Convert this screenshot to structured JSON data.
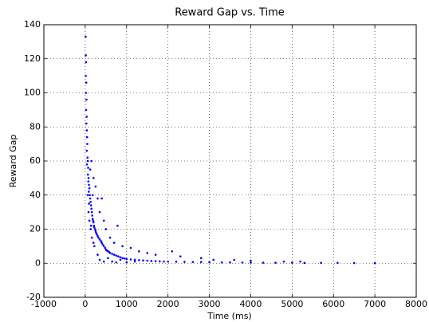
{
  "chart_data": {
    "type": "scatter",
    "title": "Reward Gap vs. Time",
    "x_label": "Time (ms)",
    "y_label": "Reward Gap",
    "color": "#0000ff",
    "grid": true,
    "xlim": [
      -1000,
      8000
    ],
    "xticks": [
      -1000,
      0,
      1000,
      2000,
      3000,
      4000,
      5000,
      6000,
      7000,
      8000
    ],
    "ylim": [
      -20,
      140
    ],
    "yticks": [
      -20,
      0,
      20,
      40,
      60,
      80,
      100,
      120,
      140
    ],
    "x": [
      10,
      15,
      20,
      12,
      25,
      18,
      30,
      22,
      35,
      28,
      40,
      45,
      50,
      38,
      55,
      60,
      42,
      70,
      65,
      80,
      75,
      90,
      100,
      85,
      110,
      120,
      130,
      140,
      150,
      160,
      170,
      180,
      190,
      200,
      210,
      220,
      240,
      250,
      260,
      280,
      300,
      320,
      350,
      380,
      400,
      420,
      450,
      480,
      500,
      520,
      550,
      580,
      600,
      650,
      700,
      750,
      800,
      850,
      900,
      950,
      1000,
      1100,
      1200,
      1300,
      1400,
      1500,
      1600,
      1700,
      1800,
      1900,
      2000,
      2200,
      2400,
      2600,
      2800,
      3000,
      3300,
      3500,
      3800,
      4000,
      4300,
      4600,
      5000,
      5300,
      5700,
      6100,
      6500,
      7000,
      150,
      120,
      200,
      250,
      180,
      300,
      400,
      350,
      450,
      500,
      780,
      600,
      700,
      900,
      1100,
      1300,
      1500,
      1700,
      2100,
      2300,
      2800,
      3100,
      3600,
      4000,
      4800,
      5200,
      130,
      160,
      220,
      300,
      350,
      450,
      550,
      650,
      750,
      850,
      1000,
      1200,
      80,
      60,
      100,
      140,
      90,
      200
    ],
    "values": [
      133,
      122,
      118,
      110,
      106,
      100,
      96,
      90,
      86,
      82,
      78,
      74,
      70,
      66,
      62,
      60,
      58,
      56,
      52,
      50,
      48,
      46,
      44,
      42,
      40,
      38,
      36,
      34,
      32,
      30,
      28,
      26,
      25,
      24,
      22,
      21,
      20,
      19,
      18,
      17,
      16,
      15,
      14,
      13,
      12,
      11,
      10,
      9,
      8,
      7.5,
      7,
      6.5,
      6,
      5.5,
      5,
      4.5,
      4,
      3.5,
      3,
      2.8,
      2.5,
      2.2,
      2,
      1.8,
      1.6,
      1.5,
      1.3,
      1.2,
      1.1,
      1,
      1,
      0.9,
      0.8,
      0.7,
      0.7,
      0.6,
      0.5,
      0.5,
      0.4,
      0.4,
      0.3,
      0.3,
      0.3,
      0.2,
      0.2,
      0.2,
      0.1,
      0.1,
      60,
      55,
      50,
      45,
      40,
      38,
      38,
      30,
      25,
      20,
      22,
      15,
      12,
      10,
      9,
      7,
      6,
      5,
      7,
      4,
      3,
      2,
      2,
      1.5,
      1,
      1,
      20,
      15,
      10,
      5,
      2,
      1,
      3,
      1,
      0.5,
      2,
      0.5,
      1,
      30,
      40,
      25,
      22,
      35,
      12
    ]
  }
}
